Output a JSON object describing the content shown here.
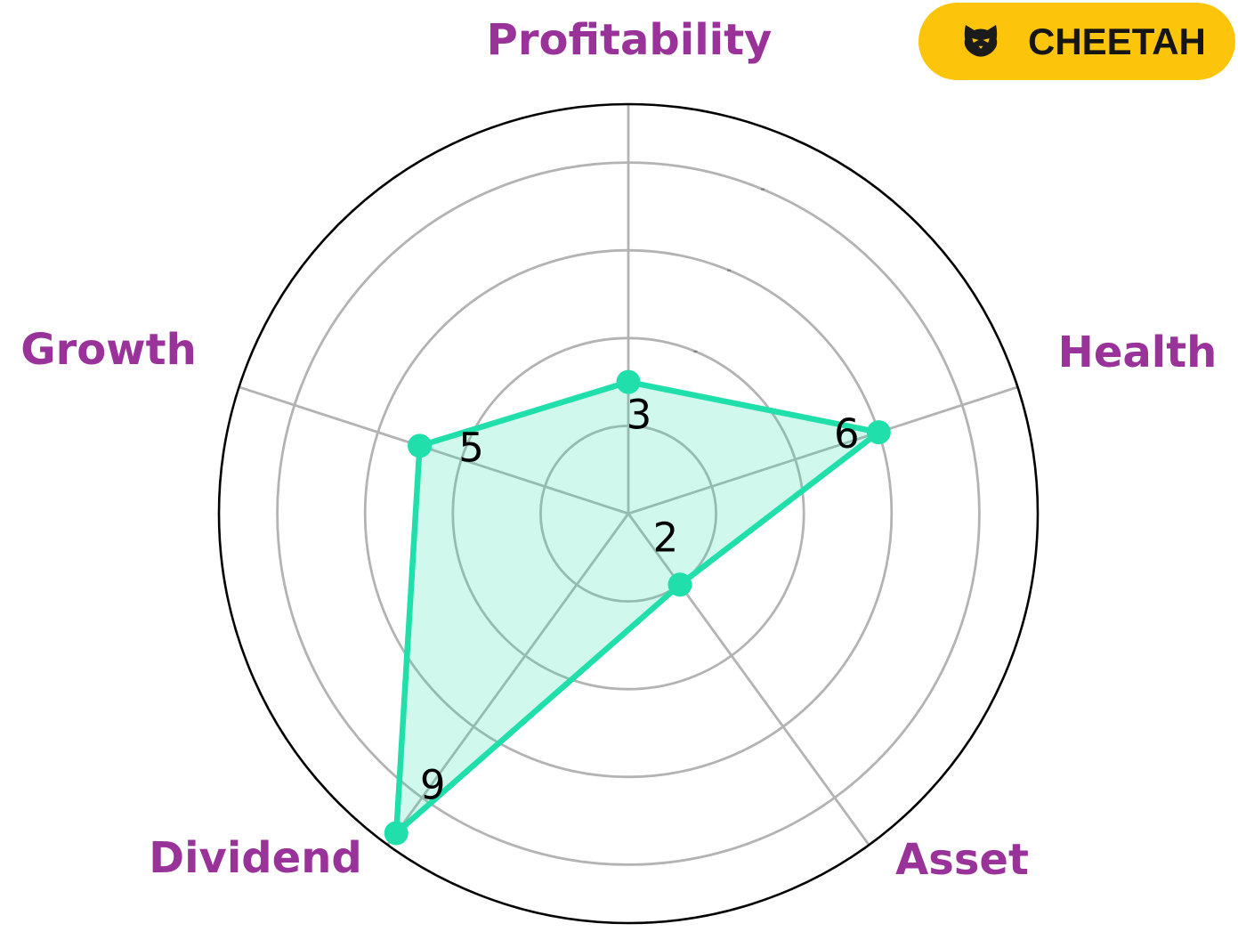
{
  "badge": {
    "label": "CHEETAH",
    "icon": "cat-icon",
    "bg_color": "#FCC50B",
    "text_color": "#151515",
    "icon_color": "#1b1b1b"
  },
  "chart_data": {
    "type": "radar",
    "categories": [
      "Profitability",
      "Health",
      "Asset",
      "Dividend",
      "Growth"
    ],
    "values": [
      3,
      6,
      2,
      9,
      5
    ],
    "scale": {
      "min": 0,
      "max": 10,
      "grid_rings": [
        2,
        4,
        6,
        8
      ],
      "outer_boundary": 9.33
    },
    "start_angle_deg": 90,
    "direction": "clockwise",
    "radial_tick_rings": [
      4,
      6,
      8
    ],
    "radial_tick_angle_deg": 67.5,
    "show_value_labels": true,
    "legend": false,
    "styles": {
      "series_color": "#20DFAA",
      "series_fill": "rgba(32, 223, 170, 0.21)",
      "marker_color": "#20DFAA",
      "grid_color": "#B3B3B3",
      "tick_color": "#7a7a7a",
      "outer_ring_color": "#000000",
      "category_label_color": "#993399",
      "value_label_color": "#000000",
      "background": "#ffffff"
    }
  }
}
